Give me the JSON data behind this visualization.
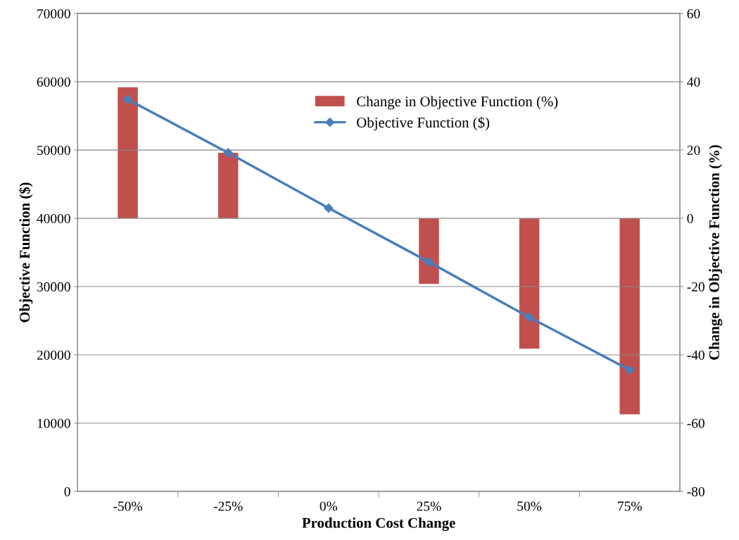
{
  "chart_data": {
    "type": "bar",
    "xlabel": "Production Cost Change",
    "ylabel": "Objective Function ($)",
    "y2label": "Change in Objective Function (%)",
    "categories": [
      "-50%",
      "-25%",
      "0%",
      "25%",
      "50%",
      "75%"
    ],
    "series": [
      {
        "name": "Change in Objective Function (%)",
        "axis": "y2",
        "color": "#c0504d",
        "values": [
          38.4,
          19.2,
          0,
          -19.2,
          -38.2,
          -57.4
        ]
      },
      {
        "name": "Objective Function ($)",
        "type": "line",
        "color": "#4a7ebb",
        "marker": "diamond",
        "values": [
          57400,
          49600,
          41500,
          33600,
          25500,
          17800
        ]
      }
    ],
    "ylim": [
      0,
      70000
    ],
    "yticks": [
      0,
      10000,
      20000,
      30000,
      40000,
      50000,
      60000,
      70000
    ],
    "y2lim": [
      -80,
      60
    ],
    "y2ticks": [
      -80,
      -60,
      -40,
      -20,
      0,
      20,
      40,
      60
    ],
    "grid": "y",
    "legend": "top right"
  }
}
